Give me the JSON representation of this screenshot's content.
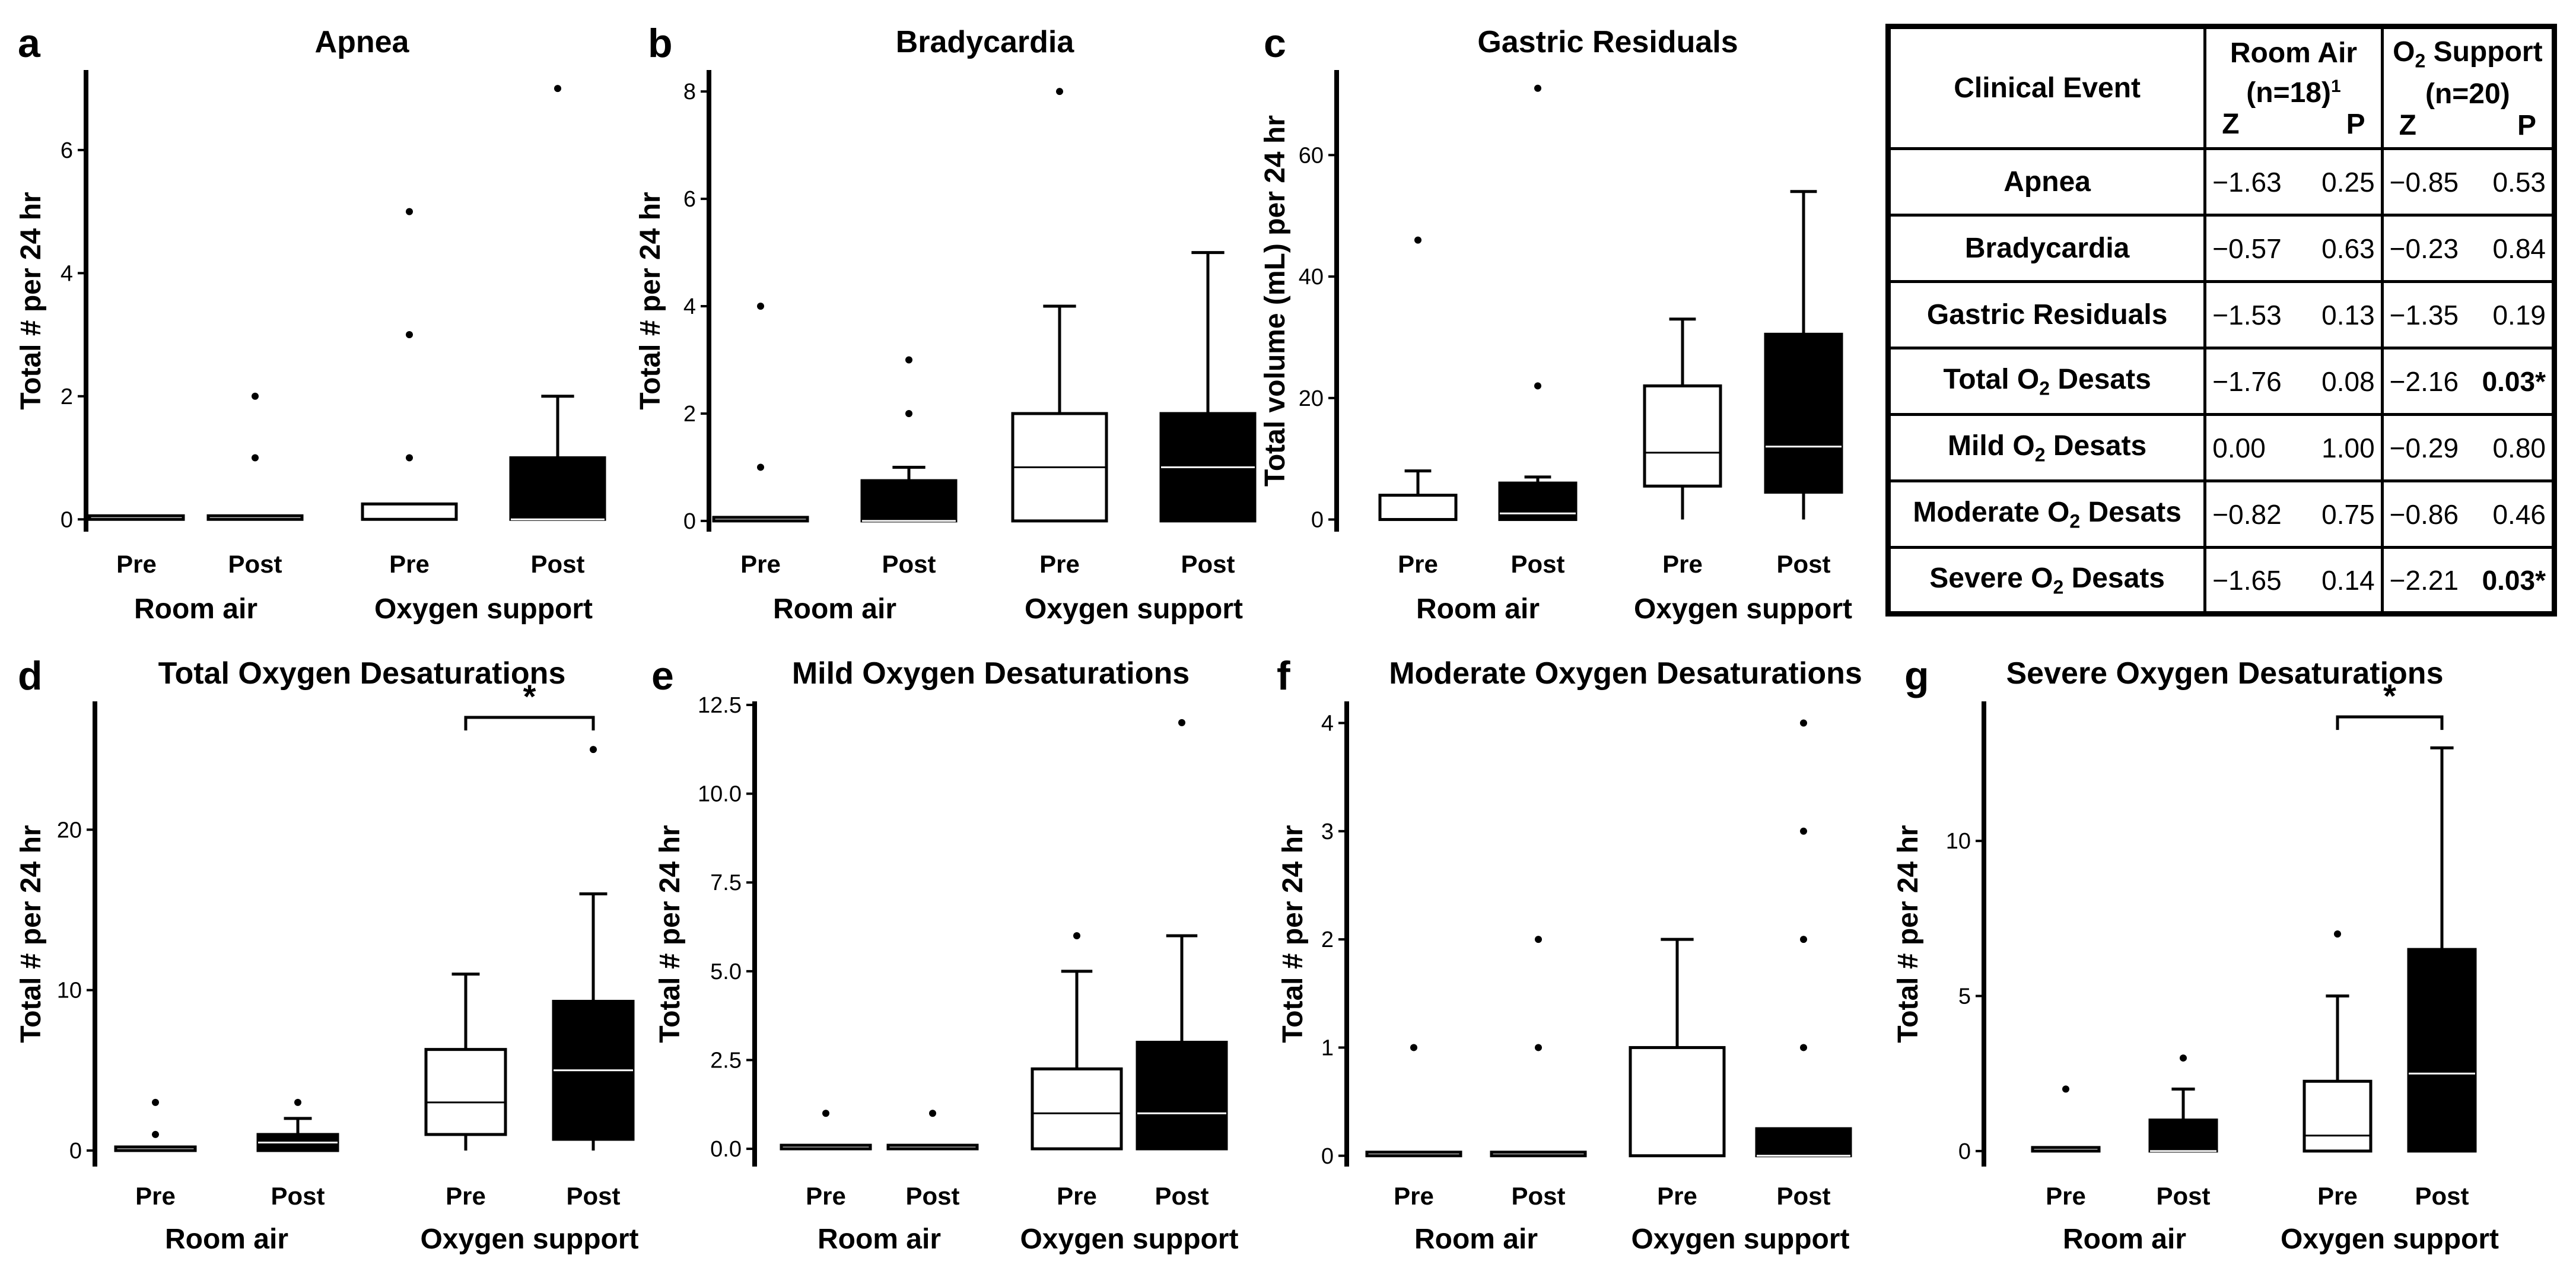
{
  "figure": {
    "panels": [
      {
        "letter": "a",
        "title": "Apnea",
        "ylabel": "Total # per 24 hr"
      },
      {
        "letter": "b",
        "title": "Bradycardia",
        "ylabel": "Total # per 24 hr"
      },
      {
        "letter": "c",
        "title": "Gastric Residuals",
        "ylabel": "Total volume (mL) per 24 hr"
      },
      {
        "letter": "d",
        "title": "Total Oxygen Desaturations",
        "ylabel": "Total # per 24 hr"
      },
      {
        "letter": "e",
        "title": "Mild Oxygen Desaturations",
        "ylabel": "Total # per 24 hr"
      },
      {
        "letter": "f",
        "title": "Moderate Oxygen Desaturations",
        "ylabel": "Total # per 24 hr"
      },
      {
        "letter": "g",
        "title": "Severe Oxygen Desaturations",
        "ylabel": "Total # per 24 hr"
      }
    ],
    "category_labels": [
      "Pre",
      "Post",
      "Pre",
      "Post"
    ],
    "group_labels": [
      "Room air",
      "Oxygen support"
    ],
    "significance_marker": "*"
  },
  "chart_data": [
    {
      "type": "box",
      "panel": "a",
      "title": "Apnea",
      "ylabel": "Total # per 24 hr",
      "ylim": [
        -0.2,
        7.3
      ],
      "yticks": [
        0,
        2,
        4,
        6
      ],
      "categories": [
        "Pre",
        "Post",
        "Pre",
        "Post"
      ],
      "groups": [
        "Room air",
        "Oxygen support"
      ],
      "series": [
        {
          "name": "Room air Pre",
          "fill": "#ffffff",
          "q1": 0,
          "median": 0,
          "q3": 0,
          "whisker_low": 0,
          "whisker_high": 0,
          "outliers": []
        },
        {
          "name": "Room air Post",
          "fill": "#ffffff",
          "q1": 0,
          "median": 0,
          "q3": 0,
          "whisker_low": 0,
          "whisker_high": 0,
          "outliers": [
            1,
            2
          ]
        },
        {
          "name": "Oxygen support Pre",
          "fill": "#ffffff",
          "q1": 0,
          "median": 0,
          "q3": 0.25,
          "whisker_low": 0,
          "whisker_high": 0.25,
          "outliers": [
            1,
            3,
            5
          ]
        },
        {
          "name": "Oxygen support Post",
          "fill": "#000000",
          "q1": 0,
          "median": 0,
          "q3": 1,
          "whisker_low": 0,
          "whisker_high": 2,
          "outliers": [
            7
          ]
        }
      ],
      "significance": null
    },
    {
      "type": "box",
      "panel": "b",
      "title": "Bradycardia",
      "ylabel": "Total # per 24 hr",
      "ylim": [
        -0.2,
        8.4
      ],
      "yticks": [
        0,
        2,
        4,
        6,
        8
      ],
      "categories": [
        "Pre",
        "Post",
        "Pre",
        "Post"
      ],
      "groups": [
        "Room air",
        "Oxygen support"
      ],
      "series": [
        {
          "name": "Room air Pre",
          "fill": "#ffffff",
          "q1": 0,
          "median": 0,
          "q3": 0,
          "whisker_low": 0,
          "whisker_high": 0,
          "outliers": [
            1,
            4
          ]
        },
        {
          "name": "Room air Post",
          "fill": "#000000",
          "q1": 0,
          "median": 0,
          "q3": 0.75,
          "whisker_low": 0,
          "whisker_high": 1,
          "outliers": [
            2,
            3
          ]
        },
        {
          "name": "Oxygen support Pre",
          "fill": "#ffffff",
          "q1": 0,
          "median": 1,
          "q3": 2,
          "whisker_low": 0,
          "whisker_high": 4,
          "outliers": [
            8
          ]
        },
        {
          "name": "Oxygen support Post",
          "fill": "#000000",
          "q1": 0,
          "median": 1,
          "q3": 2,
          "whisker_low": 0,
          "whisker_high": 5,
          "outliers": []
        }
      ],
      "significance": null
    },
    {
      "type": "box",
      "panel": "c",
      "title": "Gastric Residuals",
      "ylabel": "Total volume (mL) per 24 hr",
      "ylim": [
        -2,
        74
      ],
      "yticks": [
        0,
        20,
        40,
        60
      ],
      "categories": [
        "Pre",
        "Post",
        "Pre",
        "Post"
      ],
      "groups": [
        "Room air",
        "Oxygen support"
      ],
      "series": [
        {
          "name": "Room air Pre",
          "fill": "#ffffff",
          "q1": 0,
          "median": 0,
          "q3": 4,
          "whisker_low": 0,
          "whisker_high": 8,
          "outliers": [
            46
          ]
        },
        {
          "name": "Room air Post",
          "fill": "#000000",
          "q1": 0,
          "median": 1,
          "q3": 6,
          "whisker_low": 0,
          "whisker_high": 7,
          "outliers": [
            22,
            71
          ]
        },
        {
          "name": "Oxygen support Pre",
          "fill": "#ffffff",
          "q1": 5.5,
          "median": 11,
          "q3": 22,
          "whisker_low": 0,
          "whisker_high": 33,
          "outliers": []
        },
        {
          "name": "Oxygen support Post",
          "fill": "#000000",
          "q1": 4.5,
          "median": 12,
          "q3": 30.5,
          "whisker_low": 0,
          "whisker_high": 54,
          "outliers": []
        }
      ],
      "significance": null
    },
    {
      "type": "box",
      "panel": "d",
      "title": "Total Oxygen Desaturations",
      "ylabel": "Total # per 24 hr",
      "ylim": [
        -1,
        28
      ],
      "yticks": [
        0,
        10,
        20
      ],
      "categories": [
        "Pre",
        "Post",
        "Pre",
        "Post"
      ],
      "groups": [
        "Room air",
        "Oxygen support"
      ],
      "series": [
        {
          "name": "Room air Pre",
          "fill": "#ffffff",
          "q1": 0,
          "median": 0,
          "q3": 0,
          "whisker_low": 0,
          "whisker_high": 0,
          "outliers": [
            1,
            3
          ]
        },
        {
          "name": "Room air Post",
          "fill": "#000000",
          "q1": 0,
          "median": 0.5,
          "q3": 1,
          "whisker_low": 0,
          "whisker_high": 2,
          "outliers": [
            3
          ]
        },
        {
          "name": "Oxygen support Pre",
          "fill": "#ffffff",
          "q1": 1,
          "median": 3,
          "q3": 6.3,
          "whisker_low": 0,
          "whisker_high": 11,
          "outliers": []
        },
        {
          "name": "Oxygen support Post",
          "fill": "#000000",
          "q1": 0.7,
          "median": 5,
          "q3": 9.3,
          "whisker_low": 0,
          "whisker_high": 16,
          "outliers": [
            25
          ]
        }
      ],
      "significance": {
        "between": [
          2,
          3
        ],
        "y": 27,
        "label": "*"
      }
    },
    {
      "type": "box",
      "panel": "e",
      "title": "Mild Oxygen Desaturations",
      "ylabel": "Total # per 24 hr",
      "ylim": [
        -0.5,
        12.6
      ],
      "yticks": [
        0,
        2.5,
        5,
        7.5,
        10,
        12.5
      ],
      "ytick_labels": [
        "0.0",
        "2.5",
        "5.0",
        "7.5",
        "10.0",
        "12.5"
      ],
      "categories": [
        "Pre",
        "Post",
        "Pre",
        "Post"
      ],
      "groups": [
        "Room air",
        "Oxygen support"
      ],
      "series": [
        {
          "name": "Room air Pre",
          "fill": "#ffffff",
          "q1": 0,
          "median": 0,
          "q3": 0,
          "whisker_low": 0,
          "whisker_high": 0,
          "outliers": [
            1
          ]
        },
        {
          "name": "Room air Post",
          "fill": "#ffffff",
          "q1": 0,
          "median": 0,
          "q3": 0,
          "whisker_low": 0,
          "whisker_high": 0,
          "outliers": [
            1
          ]
        },
        {
          "name": "Oxygen support Pre",
          "fill": "#ffffff",
          "q1": 0,
          "median": 1,
          "q3": 2.25,
          "whisker_low": 0,
          "whisker_high": 5,
          "outliers": [
            6
          ]
        },
        {
          "name": "Oxygen support Post",
          "fill": "#000000",
          "q1": 0,
          "median": 1,
          "q3": 3,
          "whisker_low": 0,
          "whisker_high": 6,
          "outliers": [
            12
          ]
        }
      ],
      "significance": null
    },
    {
      "type": "box",
      "panel": "f",
      "title": "Moderate Oxygen Desaturations",
      "ylabel": "Total # per 24 hr",
      "ylim": [
        -0.1,
        4.2
      ],
      "yticks": [
        0,
        1,
        2,
        3,
        4
      ],
      "categories": [
        "Pre",
        "Post",
        "Pre",
        "Post"
      ],
      "groups": [
        "Room air",
        "Oxygen support"
      ],
      "series": [
        {
          "name": "Room air Pre",
          "fill": "#ffffff",
          "q1": 0,
          "median": 0,
          "q3": 0,
          "whisker_low": 0,
          "whisker_high": 0,
          "outliers": [
            1
          ]
        },
        {
          "name": "Room air Post",
          "fill": "#ffffff",
          "q1": 0,
          "median": 0,
          "q3": 0,
          "whisker_low": 0,
          "whisker_high": 0,
          "outliers": [
            1,
            2
          ]
        },
        {
          "name": "Oxygen support Pre",
          "fill": "#ffffff",
          "q1": 0,
          "median": 0,
          "q3": 1,
          "whisker_low": 0,
          "whisker_high": 2,
          "outliers": []
        },
        {
          "name": "Oxygen support Post",
          "fill": "#000000",
          "q1": 0,
          "median": 0,
          "q3": 0.25,
          "whisker_low": 0,
          "whisker_high": 0.25,
          "outliers": [
            1,
            2,
            3,
            4
          ]
        }
      ],
      "significance": null
    },
    {
      "type": "box",
      "panel": "g",
      "title": "Severe Oxygen Desaturations",
      "ylabel": "Total # per 24 hr",
      "ylim": [
        -0.5,
        14.5
      ],
      "yticks": [
        0,
        5,
        10
      ],
      "categories": [
        "Pre",
        "Post",
        "Pre",
        "Post"
      ],
      "groups": [
        "Room air",
        "Oxygen support"
      ],
      "series": [
        {
          "name": "Room air Pre",
          "fill": "#ffffff",
          "q1": 0,
          "median": 0,
          "q3": 0,
          "whisker_low": 0,
          "whisker_high": 0,
          "outliers": [
            2
          ]
        },
        {
          "name": "Room air Post",
          "fill": "#000000",
          "q1": 0,
          "median": 0,
          "q3": 1,
          "whisker_low": 0,
          "whisker_high": 2,
          "outliers": [
            3
          ]
        },
        {
          "name": "Oxygen support Pre",
          "fill": "#ffffff",
          "q1": 0,
          "median": 0.5,
          "q3": 2.25,
          "whisker_low": 0,
          "whisker_high": 5,
          "outliers": [
            7
          ]
        },
        {
          "name": "Oxygen support Post",
          "fill": "#000000",
          "q1": 0,
          "median": 2.5,
          "q3": 6.5,
          "whisker_low": 0,
          "whisker_high": 13,
          "outliers": []
        }
      ],
      "significance": {
        "between": [
          2,
          3
        ],
        "y": 14,
        "label": "*"
      }
    }
  ],
  "table": {
    "header": {
      "event": "Clinical Event",
      "room_air": "Room Air",
      "room_air_n": "(n=18)",
      "room_air_sup": "1",
      "o2_prefix": "O",
      "o2_sub": "2",
      "o2_suffix": " Support",
      "o2_n": "(n=20)",
      "z": "Z",
      "p": "P"
    },
    "rows": [
      {
        "name": "Apnea",
        "o2_sub": false,
        "ra_z": "−1.63",
        "ra_p": "0.25",
        "o2_z": "−0.85",
        "o2_p": "0.53",
        "o2_p_sig": false
      },
      {
        "name": "Bradycardia",
        "o2_sub": false,
        "ra_z": "−0.57",
        "ra_p": "0.63",
        "o2_z": "−0.23",
        "o2_p": "0.84",
        "o2_p_sig": false
      },
      {
        "name": "Gastric Residuals",
        "o2_sub": false,
        "ra_z": "−1.53",
        "ra_p": "0.13",
        "o2_z": "−1.35",
        "o2_p": "0.19",
        "o2_p_sig": false
      },
      {
        "name_prefix": "Total O",
        "name_sub": "2",
        "name_suffix": " Desats",
        "o2_sub": true,
        "ra_z": "−1.76",
        "ra_p": "0.08",
        "o2_z": "−2.16",
        "o2_p": "0.03*",
        "o2_p_sig": true
      },
      {
        "name_prefix": "Mild O",
        "name_sub": "2",
        "name_suffix": " Desats",
        "o2_sub": true,
        "ra_z": "0.00",
        "ra_p": "1.00",
        "o2_z": "−0.29",
        "o2_p": "0.80",
        "o2_p_sig": false
      },
      {
        "name_prefix": "Moderate O",
        "name_sub": "2",
        "name_suffix": " Desats",
        "o2_sub": true,
        "ra_z": "−0.82",
        "ra_p": "0.75",
        "o2_z": "−0.86",
        "o2_p": "0.46",
        "o2_p_sig": false
      },
      {
        "name_prefix": "Severe O",
        "name_sub": "2",
        "name_suffix": " Desats",
        "o2_sub": true,
        "ra_z": "−1.65",
        "ra_p": "0.14",
        "o2_z": "−2.21",
        "o2_p": "0.03*",
        "o2_p_sig": true
      }
    ]
  }
}
